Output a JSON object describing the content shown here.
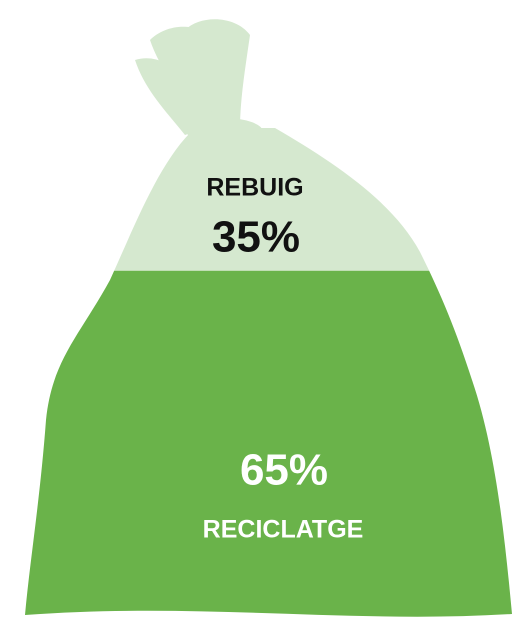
{
  "chart_data": {
    "type": "bag",
    "categories": [
      "REBUIG",
      "RECICLATGE"
    ],
    "values": [
      35,
      65
    ],
    "value_labels": [
      "35%",
      "65%"
    ],
    "colors": [
      "#d5e8cf",
      "#6ab34a"
    ]
  }
}
